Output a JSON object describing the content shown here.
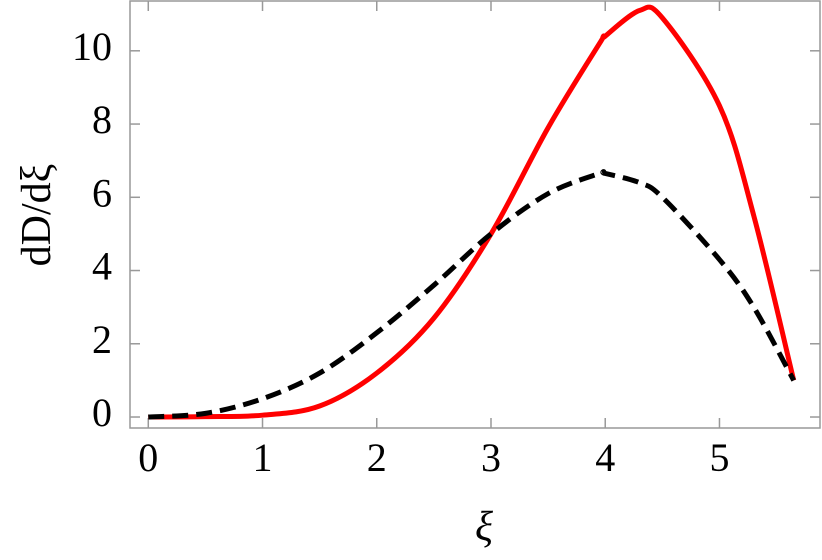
{
  "chart_data": {
    "type": "line",
    "xlabel": "ξ",
    "ylabel": "dD/dξ",
    "x": [
      0,
      0.5,
      1,
      1.5,
      2,
      2.5,
      3,
      3.5,
      3.95,
      4,
      4.3,
      4.5,
      5,
      5.3,
      5.65
    ],
    "series": [
      {
        "color": "#ff0000",
        "dash": false,
        "values": [
          0,
          0.01,
          0.05,
          0.3,
          1.2,
          2.7,
          5.0,
          7.9,
          10.2,
          10.4,
          11.1,
          10.9,
          8.5,
          5.5,
          1.0
        ]
      },
      {
        "color": "#000000",
        "dash": true,
        "values": [
          0,
          0.1,
          0.5,
          1.2,
          2.3,
          3.6,
          5.0,
          6.1,
          6.65,
          6.65,
          6.4,
          6.0,
          4.3,
          3.0,
          1.0
        ]
      }
    ],
    "xlim": [
      -0.16,
      5.88
    ],
    "ylim": [
      -0.3,
      11.36
    ],
    "xticks": [
      0,
      1,
      2,
      3,
      4,
      5
    ],
    "yticks": [
      0,
      2,
      4,
      6,
      8,
      10
    ]
  }
}
